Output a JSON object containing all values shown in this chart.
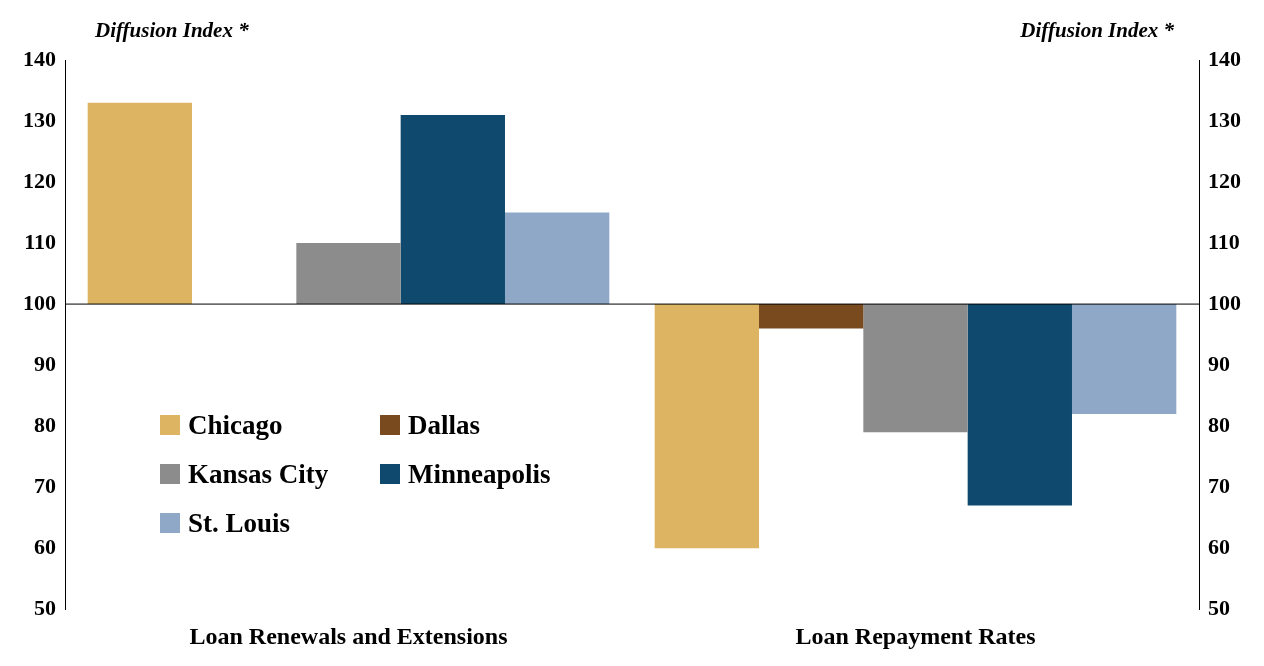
{
  "chart_data": {
    "type": "bar",
    "ylabel": "Diffusion Index *",
    "y2label": "Diffusion Index *",
    "categories": [
      "Loan Renewals and Extensions",
      "Loan Repayment Rates"
    ],
    "series": [
      {
        "name": "Chicago",
        "color": "#dcb462",
        "base": [
          100,
          100
        ],
        "values": [
          33,
          -40
        ]
      },
      {
        "name": "Dallas",
        "color": "#7a4a1f",
        "base": [
          null,
          100
        ],
        "values": [
          null,
          -4
        ]
      },
      {
        "name": "Kansas City",
        "color": "#8c8c8c",
        "base": [
          100,
          100
        ],
        "values": [
          10,
          -21
        ]
      },
      {
        "name": "Minneapolis",
        "color": "#0f4a6e",
        "base": [
          100,
          100
        ],
        "values": [
          31,
          -33
        ]
      },
      {
        "name": "St. Louis",
        "color": "#8fa8c8",
        "base": [
          100,
          100
        ],
        "values": [
          15,
          -18
        ]
      }
    ],
    "ylim": [
      50,
      140
    ],
    "yticks": [
      50,
      60,
      70,
      80,
      90,
      100,
      110,
      120,
      130,
      140
    ],
    "y2lim": [
      50,
      140
    ],
    "y2ticks": [
      50,
      60,
      70,
      80,
      90,
      100,
      110,
      120,
      130,
      140
    ],
    "ref_lines": [
      {
        "axis": "y",
        "value": 100
      }
    ],
    "legend": "left"
  }
}
